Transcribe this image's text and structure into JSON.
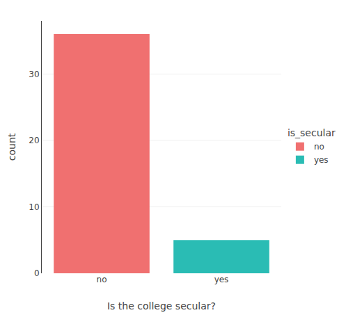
{
  "chart_data": {
    "type": "bar",
    "categories": [
      "no",
      "yes"
    ],
    "values": [
      36,
      5
    ],
    "colors": [
      "#F07070",
      "#2ABCB4"
    ],
    "xlabel": "Is the college secular?",
    "ylabel": "count",
    "ylim": [
      0,
      38
    ],
    "yticks": [
      0,
      10,
      20,
      30
    ],
    "grid": true,
    "legend": "right",
    "legend_title": "is_secular"
  }
}
